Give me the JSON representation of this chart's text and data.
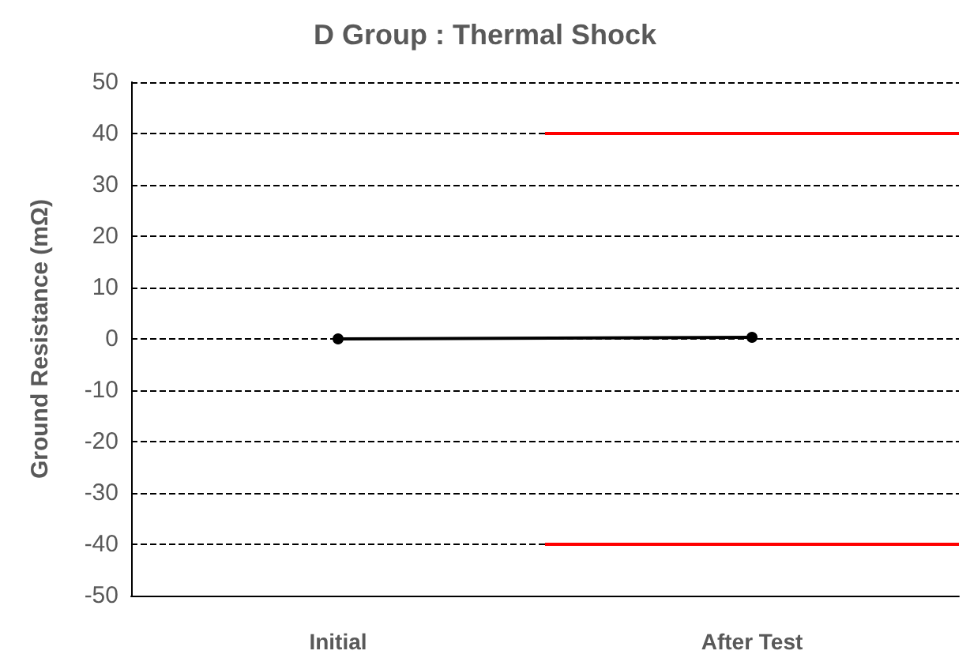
{
  "chart_data": {
    "type": "line",
    "title": "D Group : Thermal Shock",
    "ylabel": "Ground Resistance (mΩ)",
    "categories": [
      "Initial",
      "After Test"
    ],
    "series": [
      {
        "color": "#000000",
        "values": [
          0,
          0.3
        ]
      }
    ],
    "ylim": [
      -50,
      50
    ],
    "yticks": [
      -50,
      -40,
      -30,
      -20,
      -10,
      0,
      10,
      20,
      30,
      40,
      50
    ],
    "grid": "y",
    "marker": "circle",
    "line_style": "solid",
    "ref_lines": [
      {
        "axis": "y",
        "value": 40,
        "color": "#ff0000"
      },
      {
        "axis": "y",
        "value": -40,
        "color": "#ff0000"
      }
    ]
  }
}
